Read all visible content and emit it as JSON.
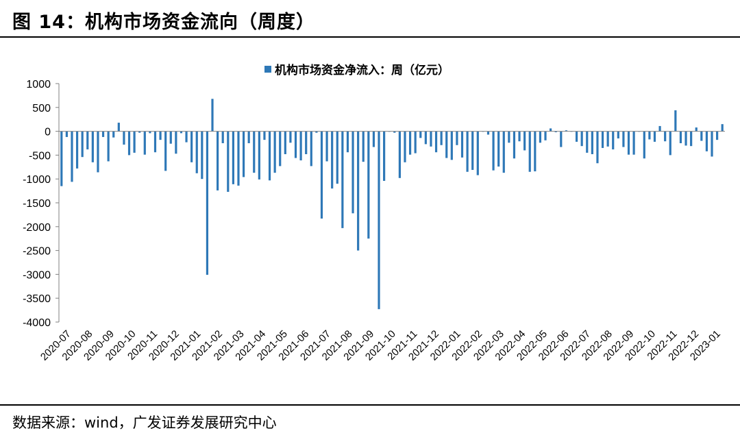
{
  "header": {
    "title": "图 14：机构市场资金流向（周度）"
  },
  "footer": {
    "source": "数据来源：wind，广发证券发展研究中心"
  },
  "colors": {
    "bar": "#2E78B7",
    "axis": "#808080"
  },
  "chart_data": {
    "type": "bar",
    "title": "",
    "xlabel": "",
    "ylabel": "",
    "ylim": [
      -4000,
      1000
    ],
    "yticks": [
      1000,
      500,
      0,
      -500,
      -1000,
      -1500,
      -2000,
      -2500,
      -3000,
      -3500,
      -4000
    ],
    "grid": false,
    "legend": {
      "position": "top-center",
      "entries": [
        "机构市场资金净流入：周（亿元）"
      ]
    },
    "x_tick_labels": [
      "2020-07",
      "2020-08",
      "2020-09",
      "2020-10",
      "2020-11",
      "2020-12",
      "2021-01",
      "2021-02",
      "2021-03",
      "2021-04",
      "2021-05",
      "2021-06",
      "2021-07",
      "2021-08",
      "2021-09",
      "2021-10",
      "2021-11",
      "2021-12",
      "2022-01",
      "2022-02",
      "2022-03",
      "2022-04",
      "2022-05",
      "2022-06",
      "2022-07",
      "2022-08",
      "2022-09",
      "2022-10",
      "2022-11",
      "2022-12",
      "2023-01"
    ],
    "series": [
      {
        "name": "机构市场资金净流入：周（亿元）",
        "values": [
          -1150,
          -120,
          -1060,
          -780,
          -540,
          -380,
          -650,
          -860,
          -120,
          -630,
          -130,
          180,
          -280,
          -500,
          -450,
          -30,
          -490,
          -40,
          -440,
          -180,
          -830,
          -260,
          -470,
          -40,
          -230,
          -650,
          -880,
          -1000,
          -3010,
          680,
          -1240,
          -250,
          -1270,
          -1110,
          -1140,
          -960,
          -250,
          -870,
          -1010,
          -180,
          -1030,
          -870,
          -730,
          -480,
          -240,
          -560,
          -610,
          -480,
          -730,
          -30,
          -1830,
          -630,
          -1200,
          -1100,
          -2030,
          -440,
          -1720,
          -2500,
          -640,
          -2250,
          -330,
          -3730,
          -1040,
          -10,
          -30,
          -980,
          -650,
          -490,
          -460,
          -140,
          -270,
          -320,
          -440,
          -290,
          -560,
          -600,
          -290,
          -550,
          -850,
          -810,
          -920,
          -10,
          -70,
          -820,
          -740,
          -870,
          -240,
          -570,
          -210,
          -400,
          -850,
          -840,
          -240,
          -190,
          60,
          -20,
          -330,
          20,
          -10,
          -220,
          -310,
          -450,
          -480,
          -670,
          -350,
          -320,
          -380,
          -150,
          -330,
          -490,
          -490,
          -10,
          -570,
          -170,
          -220,
          110,
          -210,
          -500,
          440,
          -250,
          -300,
          -310,
          80,
          -200,
          -420,
          -530,
          -180,
          150
        ]
      }
    ]
  }
}
